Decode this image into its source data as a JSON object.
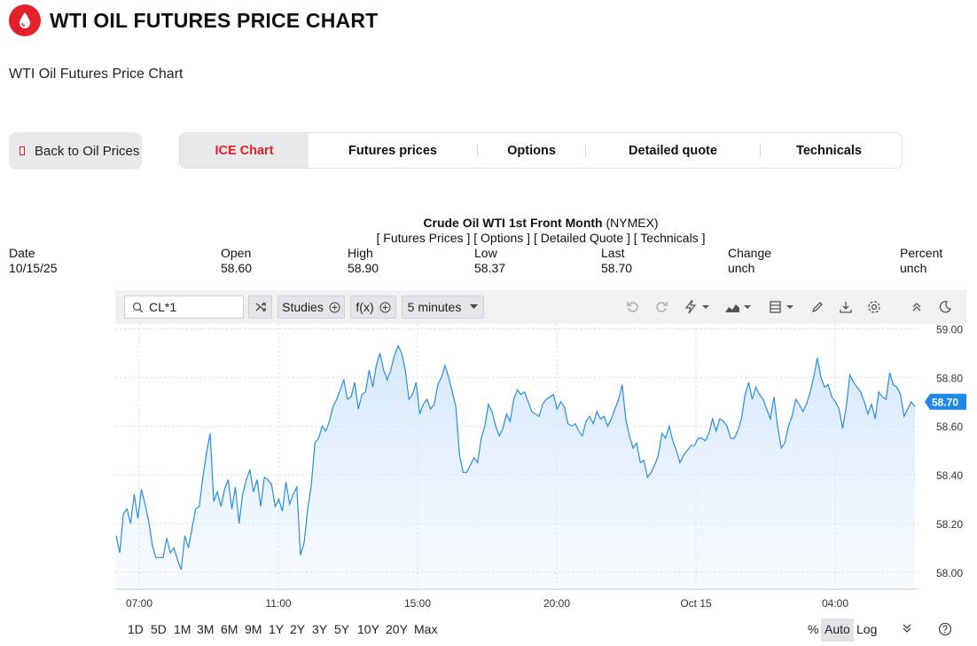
{
  "header": {
    "title": "WTI OIL FUTURES PRICE CHART",
    "subtitle": "WTI Oil Futures Price Chart",
    "brand_color": "#e4202a"
  },
  "nav": {
    "back_label": "Back to Oil Prices",
    "tabs": [
      "ICE Chart",
      "Futures prices",
      "Options",
      "Detailed quote",
      "Technicals"
    ]
  },
  "quote": {
    "name": "Crude Oil WTI 1st Front Month",
    "exchange": "(NYMEX)",
    "links": [
      "[ Futures Prices ]",
      "[ Options ]",
      "[ Detailed Quote ]",
      "[ Technicals ]"
    ],
    "stats": [
      {
        "label": "Date",
        "value": "10/15/25"
      },
      {
        "label": "Open",
        "value": "58.60"
      },
      {
        "label": "High",
        "value": "58.90"
      },
      {
        "label": "Low",
        "value": "58.37"
      },
      {
        "label": "Last",
        "value": "58.70"
      },
      {
        "label": "Change",
        "value": "unch"
      },
      {
        "label": "Percent",
        "value": "unch"
      }
    ]
  },
  "toolbar": {
    "symbol": "CL*1",
    "studies_label": "Studies",
    "fx_label": "f(x)",
    "interval_label": "5 minutes",
    "icons": [
      "search-icon",
      "compare-icon",
      "undo-icon",
      "redo-icon",
      "events-icon",
      "chart-type-icon",
      "templates-icon",
      "draw-icon",
      "download-icon",
      "settings-icon",
      "collapse-icon",
      "theme-icon"
    ]
  },
  "ranges": [
    "1D",
    "5D",
    "1M",
    "3M",
    "6M",
    "9M",
    "1Y",
    "2Y",
    "3Y",
    "5Y",
    "10Y",
    "20Y",
    "Max"
  ],
  "scale_controls": {
    "percent": "%",
    "auto": "Auto",
    "log": "Log"
  },
  "chart_data": {
    "type": "area",
    "line_color": "#2a8de0",
    "fill_color": "#d6e8fb",
    "ylim": [
      57.93,
      59.02
    ],
    "y_ticks": [
      "59.00",
      "58.80",
      "58.60",
      "58.40",
      "58.20",
      "58.00"
    ],
    "x_ticks": [
      "07:00",
      "11:00",
      "15:00",
      "20:00",
      "Oct 15",
      "04:00"
    ],
    "last_label": "58.70",
    "grid": true,
    "values": [
      58.15,
      58.08,
      58.24,
      58.26,
      58.2,
      58.32,
      58.22,
      58.34,
      58.28,
      58.21,
      58.11,
      58.06,
      58.06,
      58.06,
      58.14,
      58.08,
      58.1,
      58.05,
      58.01,
      58.15,
      58.1,
      58.18,
      58.26,
      58.27,
      58.39,
      58.49,
      58.57,
      58.29,
      58.33,
      58.27,
      58.34,
      58.38,
      58.26,
      58.35,
      58.2,
      58.32,
      58.38,
      58.42,
      58.33,
      58.38,
      58.27,
      58.39,
      58.38,
      58.36,
      58.27,
      58.3,
      58.25,
      58.37,
      58.28,
      58.32,
      58.35,
      58.07,
      58.12,
      58.26,
      58.36,
      58.53,
      58.55,
      58.6,
      58.58,
      58.62,
      58.68,
      58.71,
      58.75,
      58.79,
      58.71,
      58.72,
      58.78,
      58.67,
      58.73,
      58.74,
      58.83,
      58.76,
      58.85,
      58.9,
      58.83,
      58.79,
      58.83,
      58.89,
      58.93,
      58.9,
      58.83,
      58.71,
      58.73,
      58.78,
      58.65,
      58.69,
      58.71,
      58.67,
      58.69,
      58.77,
      58.8,
      58.85,
      58.8,
      58.74,
      58.68,
      58.48,
      58.41,
      58.41,
      58.44,
      58.47,
      58.45,
      58.55,
      58.6,
      58.69,
      58.66,
      58.6,
      58.56,
      58.59,
      58.65,
      58.62,
      58.71,
      58.75,
      58.73,
      58.74,
      58.7,
      58.66,
      58.65,
      58.64,
      58.69,
      58.71,
      58.72,
      58.73,
      58.67,
      58.7,
      58.68,
      58.61,
      58.6,
      58.61,
      58.58,
      58.56,
      58.62,
      58.64,
      58.61,
      58.66,
      58.63,
      58.64,
      58.6,
      58.63,
      58.67,
      58.71,
      58.77,
      58.63,
      58.56,
      58.51,
      58.53,
      58.45,
      58.46,
      58.39,
      58.41,
      58.44,
      58.48,
      58.57,
      58.55,
      58.6,
      58.54,
      58.5,
      58.45,
      58.48,
      58.5,
      58.52,
      58.52,
      58.55,
      58.55,
      58.54,
      58.57,
      58.63,
      58.58,
      58.63,
      58.62,
      58.6,
      58.55,
      58.55,
      58.58,
      58.63,
      58.73,
      58.78,
      58.71,
      58.76,
      58.73,
      58.71,
      58.67,
      58.63,
      58.72,
      58.6,
      58.51,
      58.53,
      58.6,
      58.64,
      58.71,
      58.69,
      58.66,
      58.69,
      58.74,
      58.8,
      58.88,
      58.8,
      58.76,
      58.77,
      58.72,
      58.7,
      58.67,
      58.59,
      58.68,
      58.81,
      58.78,
      58.76,
      58.74,
      58.7,
      58.65,
      58.69,
      58.63,
      58.74,
      58.72,
      58.71,
      58.82,
      58.77,
      58.76,
      58.73,
      58.64,
      58.67,
      58.7,
      58.68
    ]
  }
}
